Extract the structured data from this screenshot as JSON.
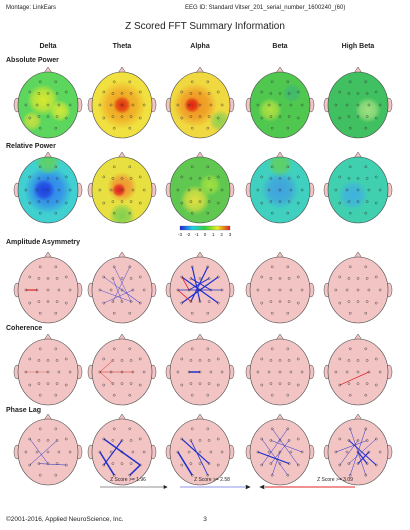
{
  "header": {
    "montage": "Montage: LinkEars",
    "eeg_id": "EEG ID: Standard Vitser_201_serial_number_1600240_(60)",
    "title": "Z Scored FFT Summary Information"
  },
  "columns": [
    "Delta",
    "Theta",
    "Alpha",
    "Beta",
    "High Beta"
  ],
  "rows": [
    "Absolute Power",
    "Relative Power",
    "Amplitude Asymmetry",
    "Coherence",
    "Phase Lag"
  ],
  "colorbar": {
    "labels": [
      "-3",
      "-2",
      "-1",
      "0",
      "1",
      "2",
      "3"
    ]
  },
  "legend": [
    "Z Score >= 1.96",
    "Z Score >= 2.58",
    "Z Score >= 3.09"
  ],
  "footer": {
    "copyright": "©2001-2016, Applied NeuroScience, Inc.",
    "page": "3"
  }
}
